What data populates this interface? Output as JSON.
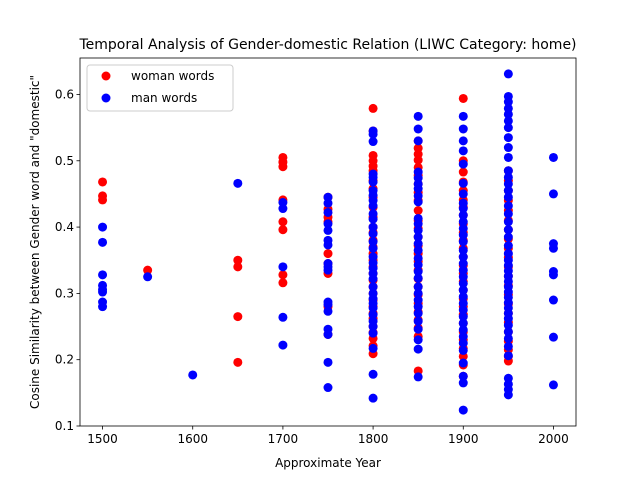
{
  "chart_data": {
    "type": "scatter",
    "title": "Temporal Analysis of Gender-domestic Relation (LIWC Category: home)",
    "xlabel": "Approximate Year",
    "ylabel": "Cosine Similarity between Gender word and \"domestic\"",
    "xlim": [
      1475,
      2025
    ],
    "ylim": [
      0.1,
      0.655
    ],
    "xticks": [
      1500,
      1600,
      1700,
      1800,
      1900,
      2000
    ],
    "yticks": [
      0.1,
      0.2,
      0.3,
      0.4,
      0.5,
      0.6
    ],
    "legend_position": "top-left",
    "grid": false,
    "series": [
      {
        "name": "woman words",
        "color": "#ff0000",
        "points": [
          [
            1500,
            0.468
          ],
          [
            1500,
            0.447
          ],
          [
            1500,
            0.441
          ],
          [
            1550,
            0.335
          ],
          [
            1650,
            0.35
          ],
          [
            1650,
            0.34
          ],
          [
            1650,
            0.265
          ],
          [
            1650,
            0.196
          ],
          [
            1700,
            0.505
          ],
          [
            1700,
            0.498
          ],
          [
            1700,
            0.491
          ],
          [
            1700,
            0.441
          ],
          [
            1700,
            0.408
          ],
          [
            1700,
            0.396
          ],
          [
            1700,
            0.328
          ],
          [
            1700,
            0.316
          ],
          [
            1750,
            0.445
          ],
          [
            1750,
            0.427
          ],
          [
            1750,
            0.415
          ],
          [
            1750,
            0.408
          ],
          [
            1750,
            0.36
          ],
          [
            1750,
            0.345
          ],
          [
            1750,
            0.33
          ],
          [
            1750,
            0.28
          ],
          [
            1750,
            0.238
          ],
          [
            1800,
            0.579
          ],
          [
            1800,
            0.545
          ],
          [
            1800,
            0.508
          ],
          [
            1800,
            0.5
          ],
          [
            1800,
            0.492
          ],
          [
            1800,
            0.485
          ],
          [
            1800,
            0.47
          ],
          [
            1800,
            0.458
          ],
          [
            1800,
            0.445
          ],
          [
            1800,
            0.43
          ],
          [
            1800,
            0.415
          ],
          [
            1800,
            0.4
          ],
          [
            1800,
            0.392
          ],
          [
            1800,
            0.38
          ],
          [
            1800,
            0.37
          ],
          [
            1800,
            0.36
          ],
          [
            1800,
            0.35
          ],
          [
            1800,
            0.34
          ],
          [
            1800,
            0.33
          ],
          [
            1800,
            0.32
          ],
          [
            1800,
            0.31
          ],
          [
            1800,
            0.3
          ],
          [
            1800,
            0.29
          ],
          [
            1800,
            0.28
          ],
          [
            1800,
            0.27
          ],
          [
            1800,
            0.262
          ],
          [
            1800,
            0.25
          ],
          [
            1800,
            0.241
          ],
          [
            1800,
            0.232
          ],
          [
            1800,
            0.221
          ],
          [
            1800,
            0.209
          ],
          [
            1850,
            0.53
          ],
          [
            1850,
            0.519
          ],
          [
            1850,
            0.51
          ],
          [
            1850,
            0.501
          ],
          [
            1850,
            0.49
          ],
          [
            1850,
            0.478
          ],
          [
            1850,
            0.465
          ],
          [
            1850,
            0.452
          ],
          [
            1850,
            0.44
          ],
          [
            1850,
            0.425
          ],
          [
            1850,
            0.41
          ],
          [
            1850,
            0.398
          ],
          [
            1850,
            0.385
          ],
          [
            1850,
            0.372
          ],
          [
            1850,
            0.36
          ],
          [
            1850,
            0.348
          ],
          [
            1850,
            0.335
          ],
          [
            1850,
            0.322
          ],
          [
            1850,
            0.31
          ],
          [
            1850,
            0.298
          ],
          [
            1850,
            0.285
          ],
          [
            1850,
            0.272
          ],
          [
            1850,
            0.26
          ],
          [
            1850,
            0.248
          ],
          [
            1850,
            0.235
          ],
          [
            1850,
            0.183
          ],
          [
            1900,
            0.594
          ],
          [
            1900,
            0.5
          ],
          [
            1900,
            0.483
          ],
          [
            1900,
            0.468
          ],
          [
            1900,
            0.455
          ],
          [
            1900,
            0.441
          ],
          [
            1900,
            0.43
          ],
          [
            1900,
            0.418
          ],
          [
            1900,
            0.405
          ],
          [
            1900,
            0.392
          ],
          [
            1900,
            0.38
          ],
          [
            1900,
            0.368
          ],
          [
            1900,
            0.355
          ],
          [
            1900,
            0.342
          ],
          [
            1900,
            0.33
          ],
          [
            1900,
            0.318
          ],
          [
            1900,
            0.305
          ],
          [
            1900,
            0.292
          ],
          [
            1900,
            0.28
          ],
          [
            1900,
            0.268
          ],
          [
            1900,
            0.255
          ],
          [
            1900,
            0.242
          ],
          [
            1900,
            0.23
          ],
          [
            1900,
            0.217
          ],
          [
            1900,
            0.205
          ],
          [
            1900,
            0.192
          ],
          [
            1900,
            0.175
          ],
          [
            1950,
            0.485
          ],
          [
            1950,
            0.47
          ],
          [
            1950,
            0.455
          ],
          [
            1950,
            0.44
          ],
          [
            1950,
            0.425
          ],
          [
            1950,
            0.41
          ],
          [
            1950,
            0.396
          ],
          [
            1950,
            0.382
          ],
          [
            1950,
            0.368
          ],
          [
            1950,
            0.354
          ],
          [
            1950,
            0.34
          ],
          [
            1950,
            0.326
          ],
          [
            1950,
            0.312
          ],
          [
            1950,
            0.298
          ],
          [
            1950,
            0.284
          ],
          [
            1950,
            0.27
          ],
          [
            1950,
            0.256
          ],
          [
            1950,
            0.242
          ],
          [
            1950,
            0.228
          ],
          [
            1950,
            0.215
          ],
          [
            1950,
            0.205
          ],
          [
            1950,
            0.198
          ]
        ]
      },
      {
        "name": "man words",
        "color": "#0000ff",
        "points": [
          [
            1500,
            0.4
          ],
          [
            1500,
            0.377
          ],
          [
            1500,
            0.328
          ],
          [
            1500,
            0.312
          ],
          [
            1500,
            0.306
          ],
          [
            1500,
            0.302
          ],
          [
            1500,
            0.287
          ],
          [
            1500,
            0.28
          ],
          [
            1550,
            0.325
          ],
          [
            1600,
            0.177
          ],
          [
            1650,
            0.466
          ],
          [
            1700,
            0.437
          ],
          [
            1700,
            0.428
          ],
          [
            1700,
            0.34
          ],
          [
            1700,
            0.264
          ],
          [
            1700,
            0.222
          ],
          [
            1750,
            0.445
          ],
          [
            1750,
            0.436
          ],
          [
            1750,
            0.422
          ],
          [
            1750,
            0.405
          ],
          [
            1750,
            0.395
          ],
          [
            1750,
            0.38
          ],
          [
            1750,
            0.373
          ],
          [
            1750,
            0.345
          ],
          [
            1750,
            0.34
          ],
          [
            1750,
            0.335
          ],
          [
            1750,
            0.287
          ],
          [
            1750,
            0.283
          ],
          [
            1750,
            0.273
          ],
          [
            1750,
            0.246
          ],
          [
            1750,
            0.238
          ],
          [
            1750,
            0.196
          ],
          [
            1750,
            0.158
          ],
          [
            1800,
            0.545
          ],
          [
            1800,
            0.54
          ],
          [
            1800,
            0.529
          ],
          [
            1800,
            0.48
          ],
          [
            1800,
            0.475
          ],
          [
            1800,
            0.468
          ],
          [
            1800,
            0.455
          ],
          [
            1800,
            0.448
          ],
          [
            1800,
            0.44
          ],
          [
            1800,
            0.432
          ],
          [
            1800,
            0.42
          ],
          [
            1800,
            0.412
          ],
          [
            1800,
            0.4
          ],
          [
            1800,
            0.39
          ],
          [
            1800,
            0.378
          ],
          [
            1800,
            0.368
          ],
          [
            1800,
            0.355
          ],
          [
            1800,
            0.346
          ],
          [
            1800,
            0.338
          ],
          [
            1800,
            0.33
          ],
          [
            1800,
            0.322
          ],
          [
            1800,
            0.31
          ],
          [
            1800,
            0.3
          ],
          [
            1800,
            0.292
          ],
          [
            1800,
            0.285
          ],
          [
            1800,
            0.278
          ],
          [
            1800,
            0.268
          ],
          [
            1800,
            0.258
          ],
          [
            1800,
            0.25
          ],
          [
            1800,
            0.24
          ],
          [
            1800,
            0.217
          ],
          [
            1800,
            0.178
          ],
          [
            1800,
            0.142
          ],
          [
            1850,
            0.567
          ],
          [
            1850,
            0.548
          ],
          [
            1850,
            0.53
          ],
          [
            1850,
            0.483
          ],
          [
            1850,
            0.474
          ],
          [
            1850,
            0.465
          ],
          [
            1850,
            0.458
          ],
          [
            1850,
            0.447
          ],
          [
            1850,
            0.438
          ],
          [
            1850,
            0.413
          ],
          [
            1850,
            0.405
          ],
          [
            1850,
            0.395
          ],
          [
            1850,
            0.385
          ],
          [
            1850,
            0.375
          ],
          [
            1850,
            0.365
          ],
          [
            1850,
            0.353
          ],
          [
            1850,
            0.343
          ],
          [
            1850,
            0.333
          ],
          [
            1850,
            0.323
          ],
          [
            1850,
            0.31
          ],
          [
            1850,
            0.3
          ],
          [
            1850,
            0.29
          ],
          [
            1850,
            0.28
          ],
          [
            1850,
            0.27
          ],
          [
            1850,
            0.258
          ],
          [
            1850,
            0.246
          ],
          [
            1850,
            0.23
          ],
          [
            1850,
            0.216
          ],
          [
            1850,
            0.174
          ],
          [
            1900,
            0.567
          ],
          [
            1900,
            0.548
          ],
          [
            1900,
            0.53
          ],
          [
            1900,
            0.515
          ],
          [
            1900,
            0.495
          ],
          [
            1900,
            0.466
          ],
          [
            1900,
            0.45
          ],
          [
            1900,
            0.436
          ],
          [
            1900,
            0.428
          ],
          [
            1900,
            0.418
          ],
          [
            1900,
            0.408
          ],
          [
            1900,
            0.398
          ],
          [
            1900,
            0.388
          ],
          [
            1900,
            0.378
          ],
          [
            1900,
            0.365
          ],
          [
            1900,
            0.355
          ],
          [
            1900,
            0.345
          ],
          [
            1900,
            0.335
          ],
          [
            1900,
            0.325
          ],
          [
            1900,
            0.315
          ],
          [
            1900,
            0.305
          ],
          [
            1900,
            0.295
          ],
          [
            1900,
            0.285
          ],
          [
            1900,
            0.275
          ],
          [
            1900,
            0.265
          ],
          [
            1900,
            0.255
          ],
          [
            1900,
            0.245
          ],
          [
            1900,
            0.235
          ],
          [
            1900,
            0.225
          ],
          [
            1900,
            0.214
          ],
          [
            1900,
            0.195
          ],
          [
            1900,
            0.175
          ],
          [
            1900,
            0.165
          ],
          [
            1900,
            0.124
          ],
          [
            1950,
            0.631
          ],
          [
            1950,
            0.597
          ],
          [
            1950,
            0.589
          ],
          [
            1950,
            0.579
          ],
          [
            1950,
            0.57
          ],
          [
            1950,
            0.56
          ],
          [
            1950,
            0.55
          ],
          [
            1950,
            0.535
          ],
          [
            1950,
            0.52
          ],
          [
            1950,
            0.505
          ],
          [
            1950,
            0.485
          ],
          [
            1950,
            0.475
          ],
          [
            1950,
            0.465
          ],
          [
            1950,
            0.455
          ],
          [
            1950,
            0.445
          ],
          [
            1950,
            0.432
          ],
          [
            1950,
            0.42
          ],
          [
            1950,
            0.408
          ],
          [
            1950,
            0.396
          ],
          [
            1950,
            0.385
          ],
          [
            1950,
            0.372
          ],
          [
            1950,
            0.36
          ],
          [
            1950,
            0.35
          ],
          [
            1950,
            0.342
          ],
          [
            1950,
            0.334
          ],
          [
            1950,
            0.326
          ],
          [
            1950,
            0.318
          ],
          [
            1950,
            0.31
          ],
          [
            1950,
            0.302
          ],
          [
            1950,
            0.294
          ],
          [
            1950,
            0.286
          ],
          [
            1950,
            0.278
          ],
          [
            1950,
            0.27
          ],
          [
            1950,
            0.262
          ],
          [
            1950,
            0.252
          ],
          [
            1950,
            0.242
          ],
          [
            1950,
            0.232
          ],
          [
            1950,
            0.22
          ],
          [
            1950,
            0.206
          ],
          [
            1950,
            0.172
          ],
          [
            1950,
            0.163
          ],
          [
            1950,
            0.155
          ],
          [
            1950,
            0.147
          ],
          [
            2000,
            0.505
          ],
          [
            2000,
            0.45
          ],
          [
            2000,
            0.375
          ],
          [
            2000,
            0.368
          ],
          [
            2000,
            0.333
          ],
          [
            2000,
            0.328
          ],
          [
            2000,
            0.29
          ],
          [
            2000,
            0.234
          ],
          [
            2000,
            0.162
          ]
        ]
      }
    ]
  }
}
